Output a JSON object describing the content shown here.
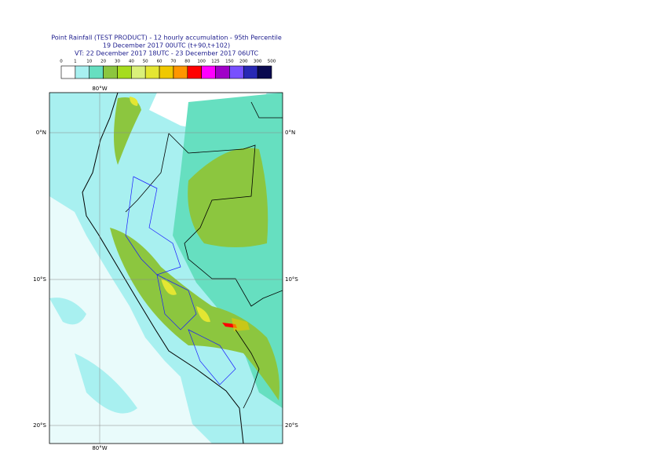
{
  "header": {
    "title_lines": [
      "Point Rainfall (TEST PRODUCT) - 12 hourly accumulation - 95th Percentile",
      "19 December 2017 00UTC (t+90,t+102)",
      "VT: 22 December 2017 18UTC - 23 December 2017 06UTC"
    ]
  },
  "colorbar": {
    "ticks": [
      0,
      1,
      10,
      20,
      30,
      40,
      50,
      60,
      70,
      80,
      100,
      125,
      150,
      200,
      300,
      500
    ],
    "colors": [
      "#ffffff",
      "#a8f0f0",
      "#66dfc0",
      "#8cc63f",
      "#a6dc1e",
      "#daf07a",
      "#e4e632",
      "#f0c800",
      "#ff9600",
      "#ff0000",
      "#ff00ff",
      "#a000c8",
      "#7850ff",
      "#2828b4",
      "#0a0a50"
    ]
  },
  "map": {
    "lon_label": "80°W",
    "lat_labels": [
      "0°N",
      "10°S",
      "20°S"
    ]
  }
}
